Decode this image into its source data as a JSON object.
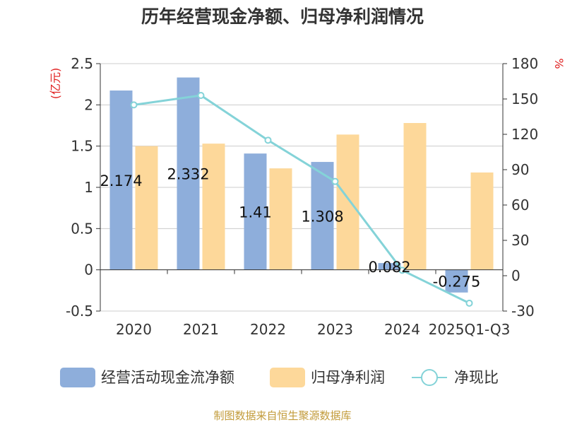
{
  "chart_data": {
    "type": "bar",
    "title": "历年经营现金净额、归母净利润情况",
    "categories": [
      "2020",
      "2021",
      "2022",
      "2023",
      "2024",
      "2025Q1-Q3"
    ],
    "series": [
      {
        "name": "经营活动现金流净额",
        "kind": "bar",
        "axis": "left",
        "values": [
          2.174,
          2.332,
          1.41,
          1.308,
          0.082,
          -0.275
        ],
        "labels": [
          "2.174",
          "2.332",
          "1.41",
          "1.308",
          "0.082",
          "-0.275"
        ]
      },
      {
        "name": "归母净利润",
        "kind": "bar",
        "axis": "left",
        "values": [
          1.5,
          1.53,
          1.23,
          1.64,
          1.78,
          1.18
        ]
      },
      {
        "name": "净现比",
        "kind": "line",
        "axis": "right",
        "values": [
          145,
          153,
          115,
          80,
          4.6,
          -23.3
        ]
      }
    ],
    "ylabel_left": "(亿元)",
    "ylabel_right": "%",
    "ylim_left": [
      -0.5,
      2.5
    ],
    "yticks_left": [
      "-0.5",
      "0",
      "0.5",
      "1",
      "1.5",
      "2",
      "2.5"
    ],
    "ylim_right": [
      -30,
      180
    ],
    "yticks_right": [
      "-30",
      "0",
      "30",
      "60",
      "90",
      "120",
      "150",
      "180"
    ],
    "legend_position": "bottom",
    "colors": {
      "cashflow": "#8eaedb",
      "profit": "#fdd89a",
      "ratio": "#84d3d8",
      "label_red": "#e02020",
      "source": "#c29b3a"
    }
  },
  "source": "制图数据来自恒生聚源数据库"
}
